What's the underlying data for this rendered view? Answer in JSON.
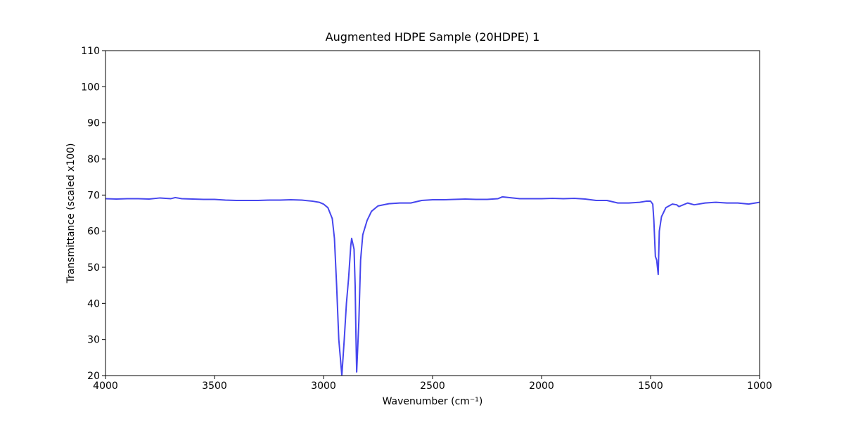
{
  "chart_data": {
    "type": "line",
    "title": "Augmented HDPE Sample (20HDPE) 1",
    "x_label": "Wavenumber (cm⁻¹)",
    "y_label": "Transmittance (scaled x100)",
    "xlim": [
      4000,
      1000
    ],
    "ylim": [
      20,
      110
    ],
    "xticks": [
      4000,
      3500,
      3000,
      2500,
      2000,
      1500,
      1000
    ],
    "yticks": [
      20,
      30,
      40,
      50,
      60,
      70,
      80,
      90,
      100,
      110
    ],
    "x": [
      4000,
      3950,
      3900,
      3850,
      3800,
      3750,
      3700,
      3680,
      3650,
      3600,
      3550,
      3500,
      3450,
      3400,
      3350,
      3300,
      3250,
      3200,
      3150,
      3100,
      3050,
      3020,
      3000,
      2980,
      2960,
      2950,
      2940,
      2930,
      2916,
      2905,
      2895,
      2885,
      2875,
      2871,
      2860,
      2855,
      2851,
      2848,
      2838,
      2830,
      2820,
      2800,
      2780,
      2750,
      2700,
      2650,
      2600,
      2550,
      2500,
      2450,
      2400,
      2350,
      2300,
      2250,
      2200,
      2180,
      2150,
      2100,
      2050,
      2000,
      1950,
      1900,
      1850,
      1800,
      1750,
      1700,
      1650,
      1600,
      1550,
      1520,
      1500,
      1490,
      1485,
      1478,
      1472,
      1465,
      1460,
      1450,
      1430,
      1400,
      1380,
      1370,
      1350,
      1330,
      1300,
      1250,
      1200,
      1150,
      1100,
      1050,
      1000
    ],
    "series": [
      {
        "name": "20HDPE",
        "color": "#4646ee",
        "values": [
          69.0,
          68.9,
          69.0,
          69.0,
          68.9,
          69.2,
          69.0,
          69.3,
          69.0,
          68.9,
          68.8,
          68.8,
          68.6,
          68.5,
          68.5,
          68.5,
          68.6,
          68.6,
          68.7,
          68.6,
          68.3,
          68.0,
          67.5,
          66.5,
          63.5,
          58,
          45,
          30,
          20,
          30,
          40,
          47,
          56,
          58,
          55,
          45,
          30,
          21,
          35,
          52,
          59,
          63,
          65.5,
          67,
          67.6,
          67.8,
          67.8,
          68.5,
          68.7,
          68.7,
          68.8,
          68.9,
          68.8,
          68.8,
          69.0,
          69.5,
          69.3,
          69.0,
          69.0,
          69.0,
          69.1,
          69.0,
          69.1,
          68.9,
          68.5,
          68.5,
          67.8,
          67.8,
          68.0,
          68.3,
          68.3,
          67.5,
          63,
          53,
          52,
          48,
          60,
          64,
          66.5,
          67.5,
          67.3,
          66.8,
          67.3,
          67.8,
          67.3,
          67.8,
          68.0,
          67.8,
          67.8,
          67.5,
          68.0
        ]
      }
    ]
  }
}
